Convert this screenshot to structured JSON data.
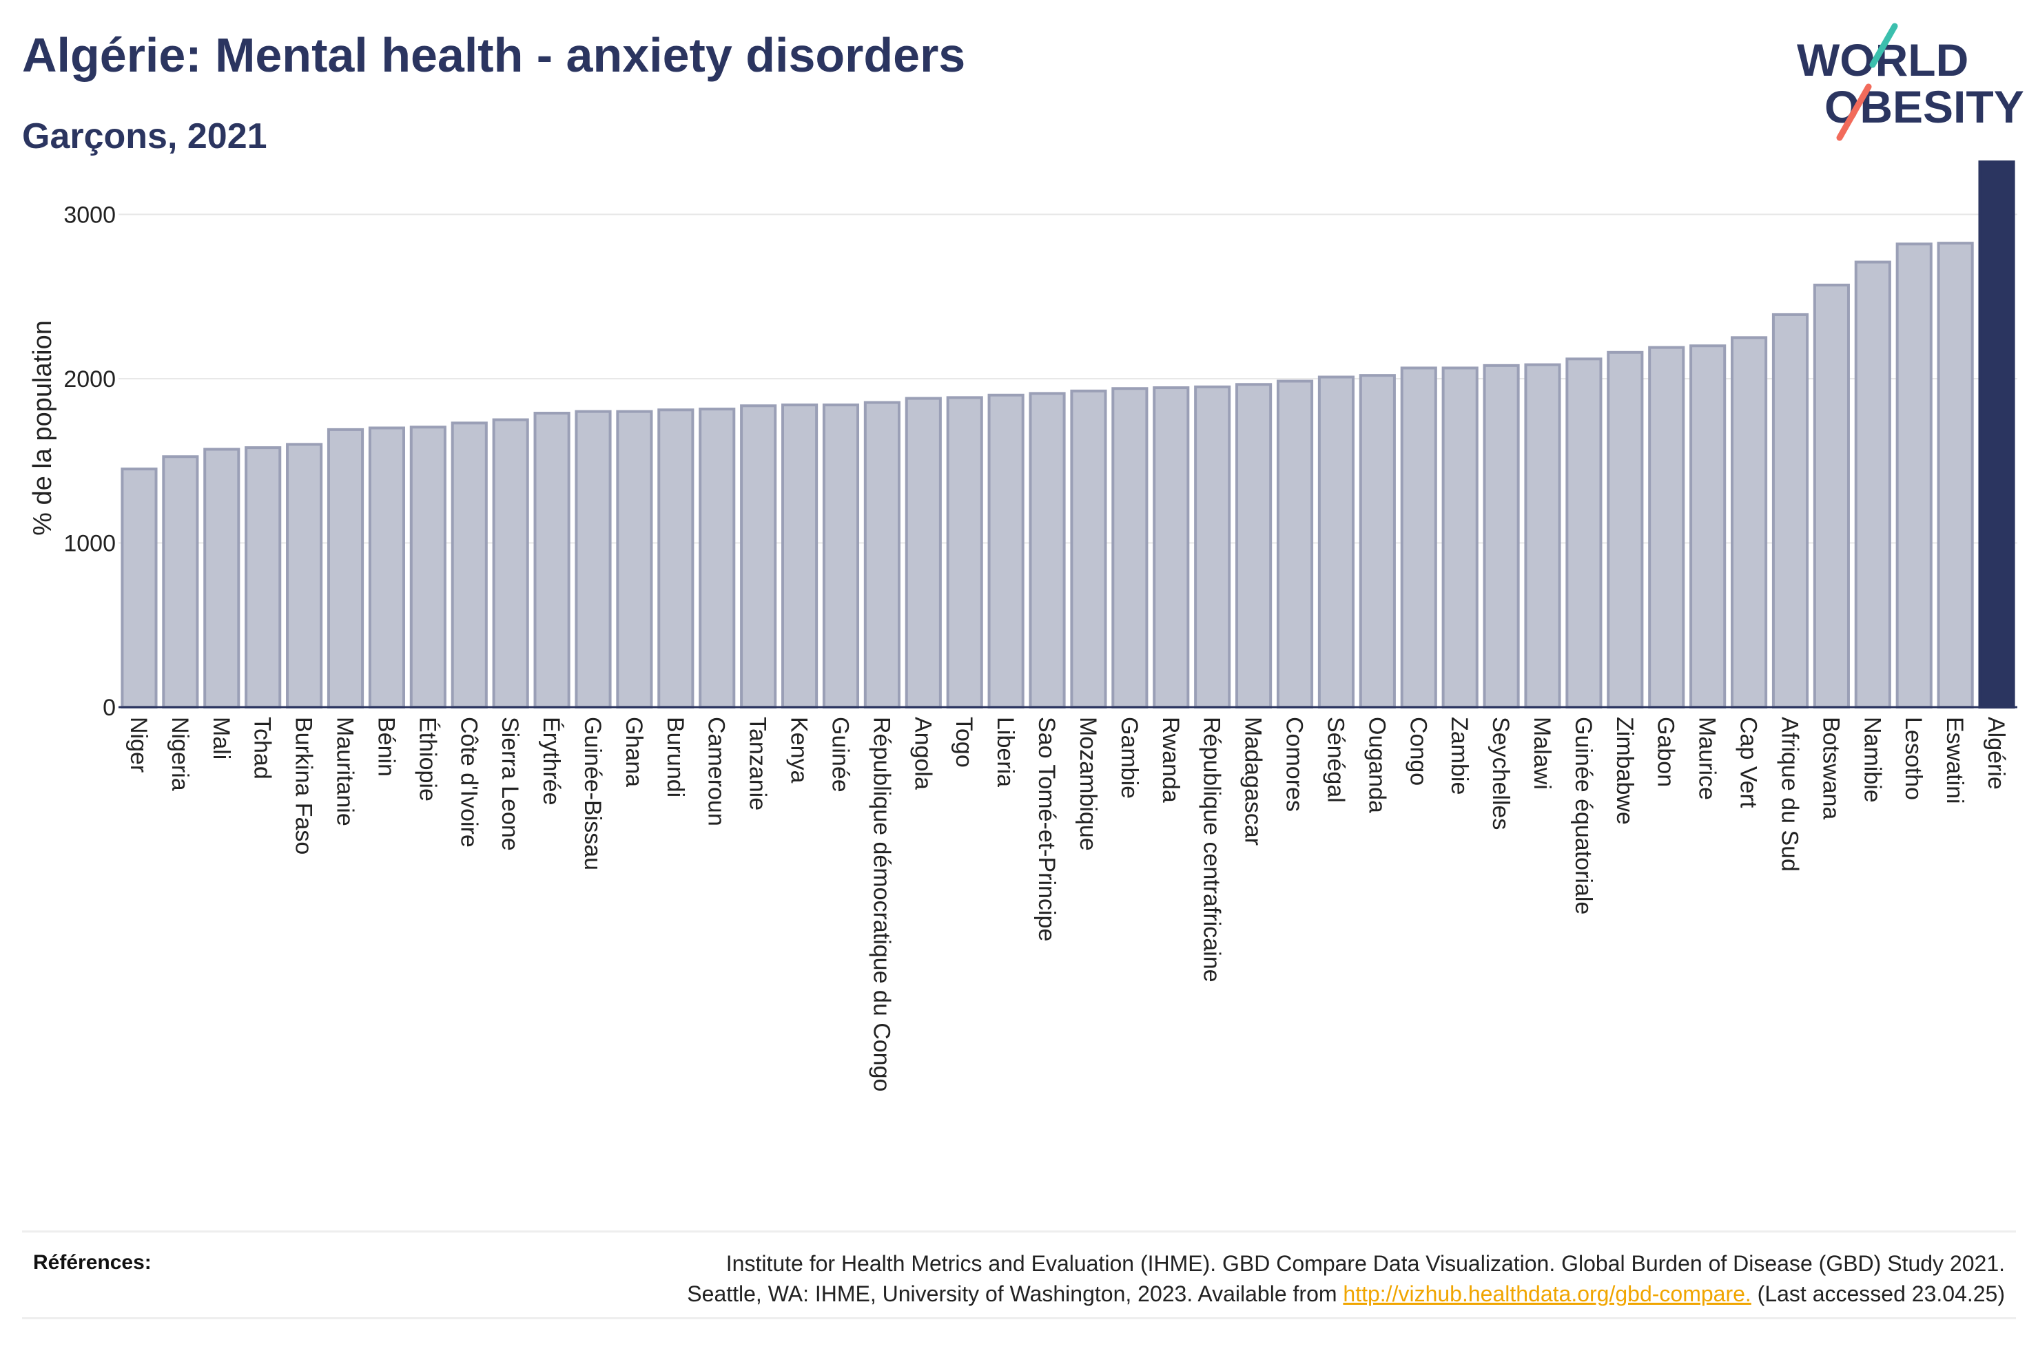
{
  "header": {
    "title": "Algérie: Mental health - anxiety disorders",
    "subtitle": "Garçons, 2021"
  },
  "logo": {
    "line1": "WORLD",
    "line2": "OBESITY"
  },
  "colors": {
    "highlight": "#2b3560",
    "bar_fill": "#bfc3d1",
    "bar_stroke": "#9a9fb6",
    "grid": "#e8e8e8",
    "logo_teal": "#3bbfad",
    "logo_coral": "#f26b5b"
  },
  "chart_data": {
    "type": "bar",
    "title": "Algérie: Mental health - anxiety disorders",
    "subtitle": "Garçons, 2021",
    "xlabel": "",
    "ylabel": "% de la population",
    "ylim": [
      0,
      3400
    ],
    "yticks": [
      0,
      1000,
      2000,
      3000
    ],
    "grid": true,
    "highlight": "Algérie",
    "categories": [
      "Niger",
      "Nigeria",
      "Mali",
      "Tchad",
      "Burkina Faso",
      "Mauritanie",
      "Bénin",
      "Éthiopie",
      "Côte d'Ivoire",
      "Sierra Leone",
      "Érythrée",
      "Guinée-Bissau",
      "Ghana",
      "Burundi",
      "Cameroun",
      "Tanzanie",
      "Kenya",
      "Guinée",
      "République démocratique du Congo",
      "Angola",
      "Togo",
      "Liberia",
      "Sao Tomé-et-Principe",
      "Mozambique",
      "Gambie",
      "Rwanda",
      "République centrafricaine",
      "Madagascar",
      "Comores",
      "Sénégal",
      "Ouganda",
      "Congo",
      "Zambie",
      "Seychelles",
      "Malawi",
      "Guinée équatoriale",
      "Zimbabwe",
      "Gabon",
      "Maurice",
      "Cap Vert",
      "Afrique du Sud",
      "Botswana",
      "Namibie",
      "Lesotho",
      "Eswatini",
      "Algérie"
    ],
    "values": [
      1450,
      1525,
      1570,
      1580,
      1600,
      1690,
      1700,
      1705,
      1730,
      1750,
      1790,
      1800,
      1800,
      1810,
      1815,
      1835,
      1840,
      1840,
      1855,
      1880,
      1885,
      1900,
      1910,
      1925,
      1940,
      1945,
      1950,
      1965,
      1985,
      2010,
      2020,
      2065,
      2065,
      2080,
      2085,
      2120,
      2160,
      2190,
      2200,
      2250,
      2390,
      2570,
      2710,
      2820,
      2825,
      3320
    ]
  },
  "references": {
    "label": "Références:",
    "line1": "Institute for Health Metrics and Evaluation (IHME). GBD Compare Data Visualization. Global Burden of Disease (GBD) Study 2021.",
    "line2_before": "Seattle, WA: IHME, University of Washington, 2023. Available from ",
    "link": "http://vizhub.healthdata.org/gbd-compare.",
    "line2_after": " (Last accessed 23.04.25)"
  }
}
